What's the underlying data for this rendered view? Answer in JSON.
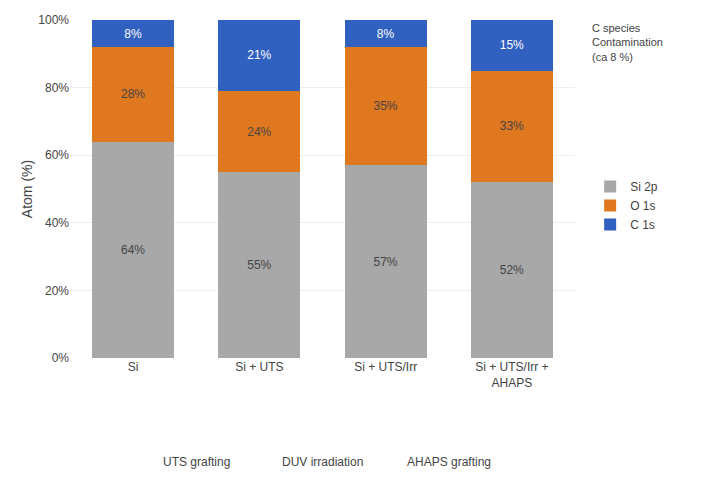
{
  "chart_data": {
    "type": "bar",
    "stacked": true,
    "categories": [
      "Si",
      "Si + UTS",
      "Si + UTS/Irr",
      "Si + UTS/Irr +\nAHAPS"
    ],
    "series": [
      {
        "name": "Si 2p",
        "color": "#a8a8a8",
        "values": [
          64,
          55,
          57,
          52
        ],
        "value_labels": [
          "64%",
          "55%",
          "57%",
          "52%"
        ]
      },
      {
        "name": "O 1s",
        "color": "#e07820",
        "values": [
          28,
          24,
          35,
          33
        ],
        "value_labels": [
          "28%",
          "24%",
          "35%",
          "33%"
        ]
      },
      {
        "name": "C 1s",
        "color": "#3060c0",
        "values": [
          8,
          21,
          8,
          15
        ],
        "value_labels": [
          "8%",
          "21%",
          "8%",
          "15%"
        ]
      }
    ],
    "ylabel": "Atom (%)",
    "ylim": [
      0,
      100
    ],
    "yticks": [
      {
        "value": 0,
        "label": "0%"
      },
      {
        "value": 20,
        "label": "20%"
      },
      {
        "value": 40,
        "label": "40%"
      },
      {
        "value": 60,
        "label": "60%"
      },
      {
        "value": 80,
        "label": "80%"
      },
      {
        "value": 100,
        "label": "100%"
      }
    ],
    "grid": true,
    "legend": "right",
    "data_labels": true,
    "annotations": [
      "C species\nContamination\n(ca 8 %)",
      "UTS grafting",
      "DUV irradiation",
      "AHAPS grafting"
    ]
  }
}
